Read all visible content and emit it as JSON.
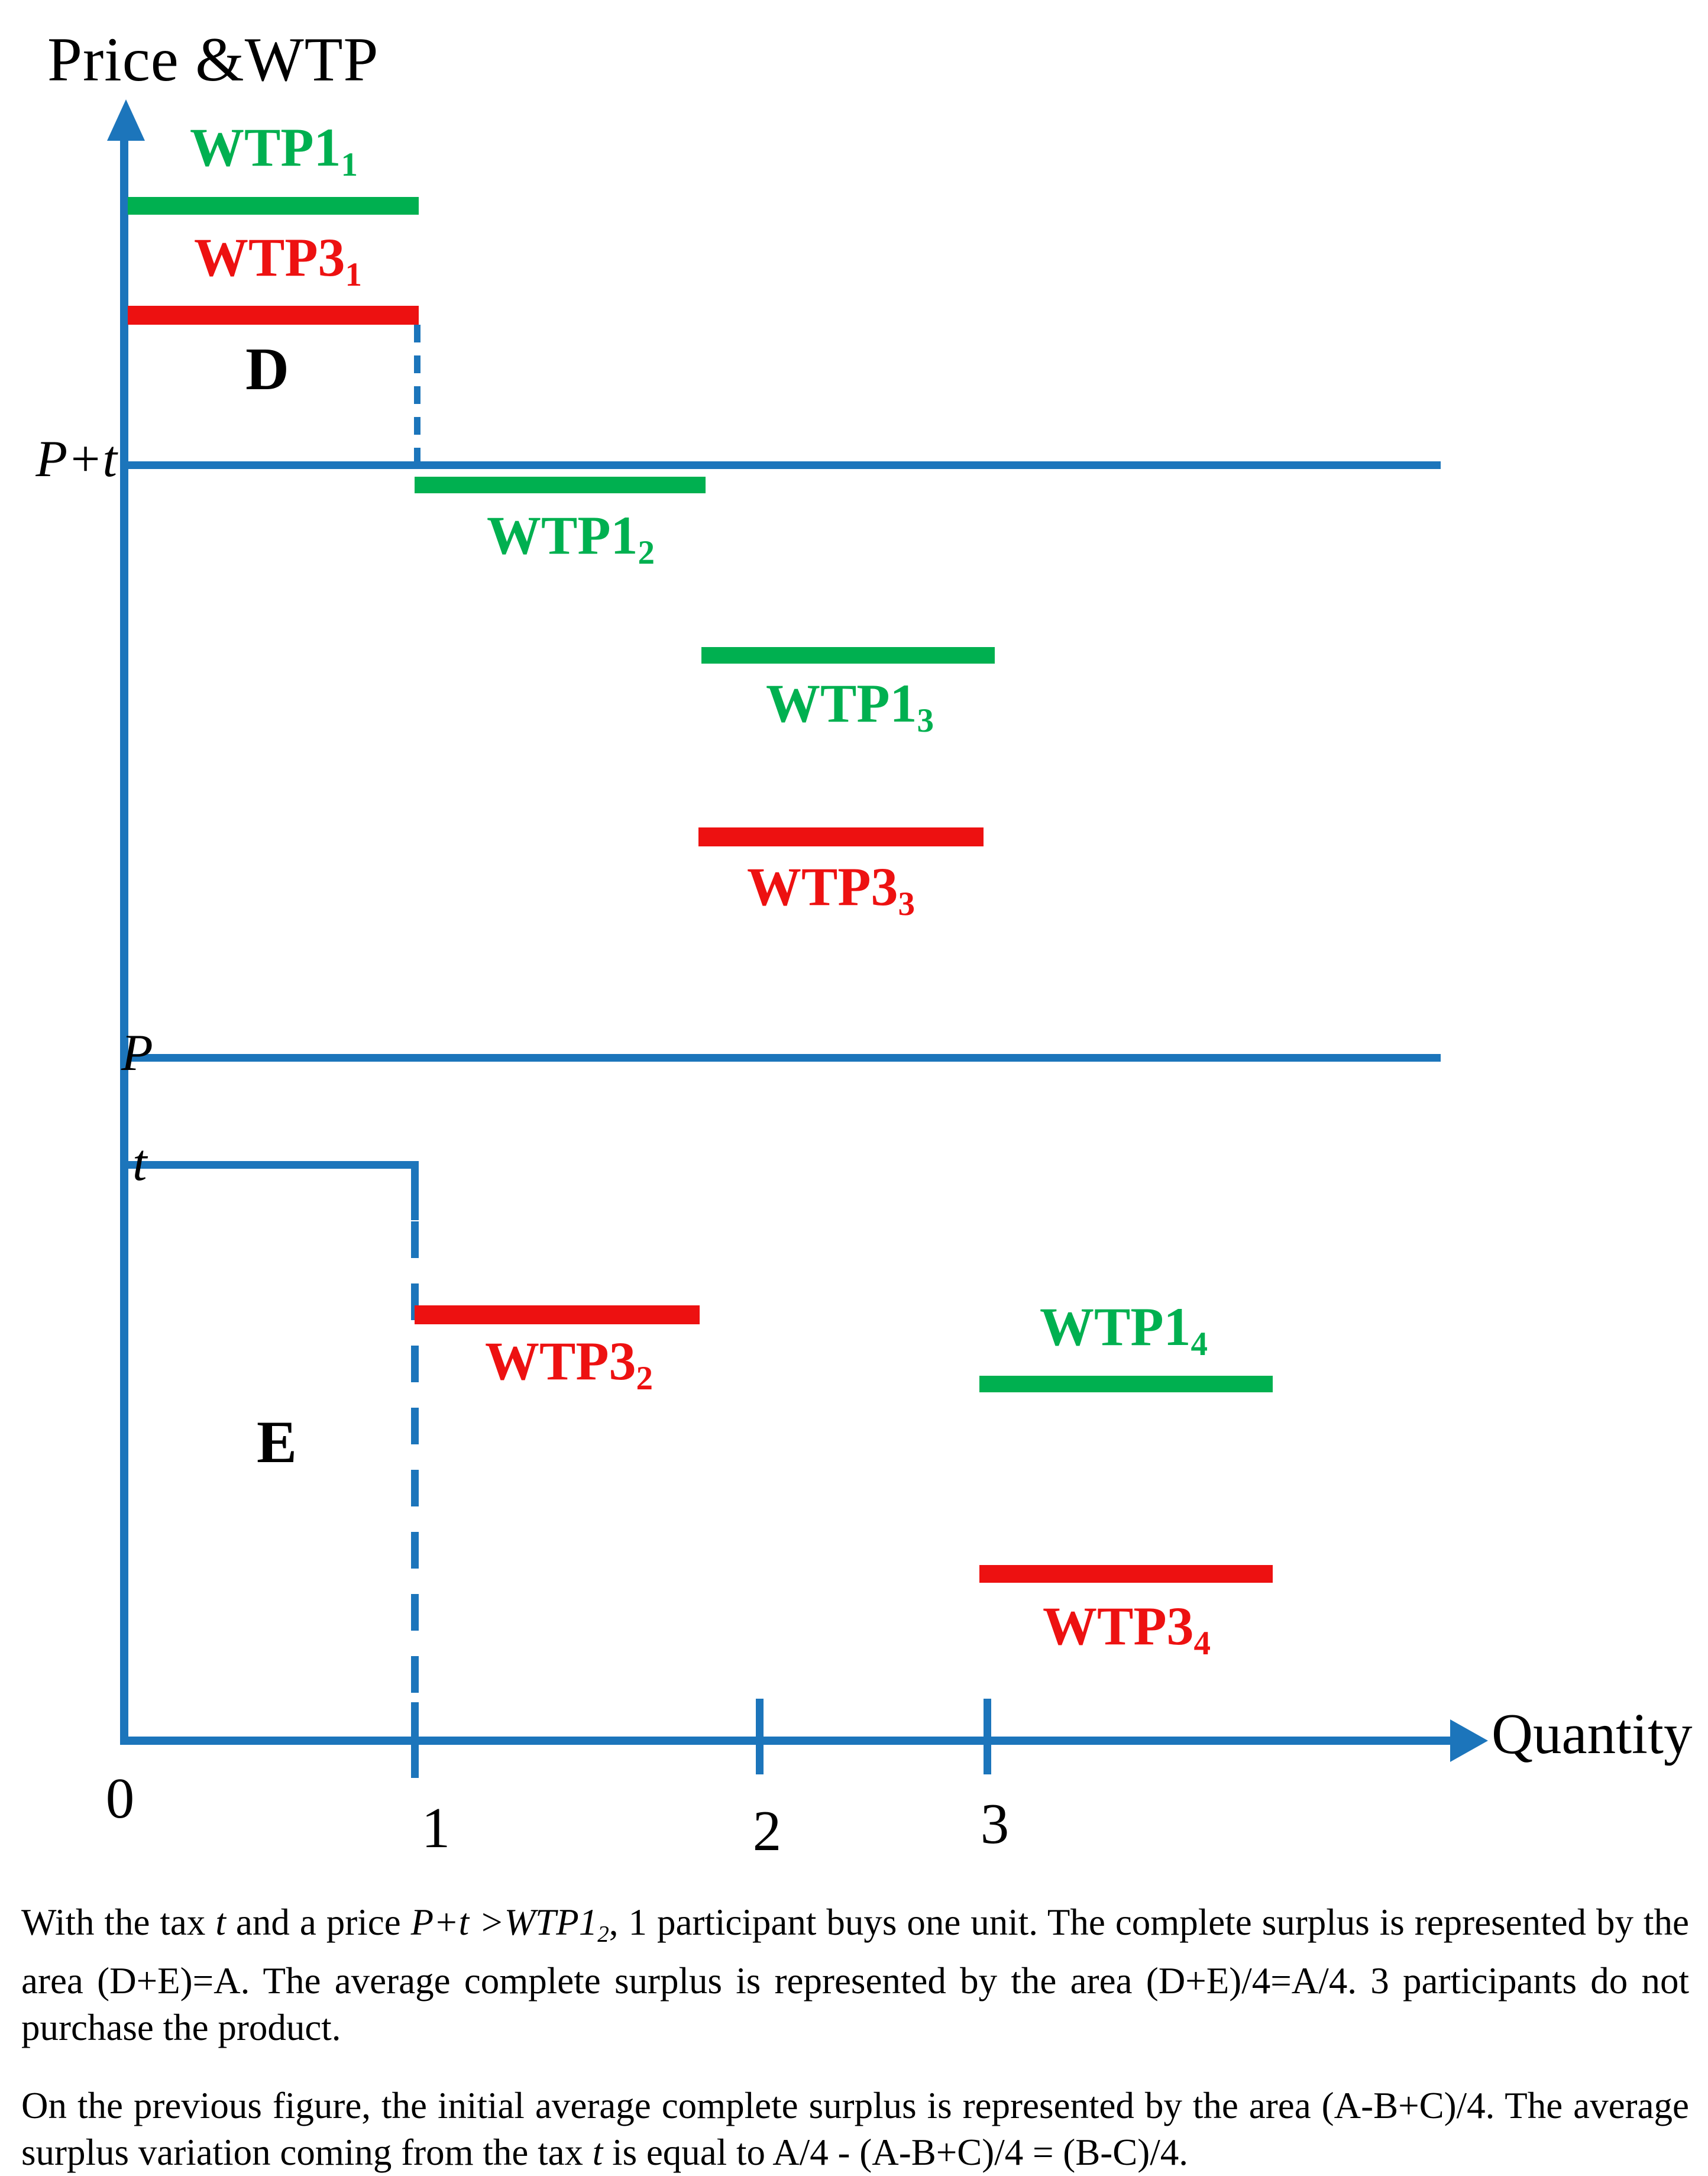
{
  "page": {
    "background": "#ffffff"
  },
  "figure": {
    "title": "Price &WTP",
    "x_axis_label": "Quantity",
    "x_ticks": [
      "0",
      "1",
      "2",
      "3"
    ],
    "price_lines": {
      "p_plus_t": "P+t",
      "p": "P",
      "t": "t"
    },
    "area_labels": {
      "d": "D",
      "e": "E"
    },
    "bars": [
      {
        "id": "wtp1-1",
        "series": "WTP1",
        "label": "WTP1",
        "sub": "1",
        "color": "#00b050"
      },
      {
        "id": "wtp3-1",
        "series": "WTP3",
        "label": "WTP3",
        "sub": "1",
        "color": "#ed1111"
      },
      {
        "id": "wtp1-2",
        "series": "WTP1",
        "label": "WTP1",
        "sub": "2",
        "color": "#00b050"
      },
      {
        "id": "wtp1-3",
        "series": "WTP1",
        "label": "WTP1",
        "sub": "3",
        "color": "#00b050"
      },
      {
        "id": "wtp3-3",
        "series": "WTP3",
        "label": "WTP3",
        "sub": "3",
        "color": "#ed1111"
      },
      {
        "id": "wtp3-2",
        "series": "WTP3",
        "label": "WTP3",
        "sub": "2",
        "color": "#ed1111"
      },
      {
        "id": "wtp1-4",
        "series": "WTP1",
        "label": "WTP1",
        "sub": "4",
        "color": "#00b050"
      },
      {
        "id": "wtp3-4",
        "series": "WTP3",
        "label": "WTP3",
        "sub": "4",
        "color": "#ed1111"
      }
    ],
    "colors": {
      "axis_blue": "#1c75bb",
      "wtp1_green": "#00b050",
      "wtp3_red": "#ed1111",
      "text": "#000000"
    }
  },
  "chart_data": {
    "type": "line",
    "title": "Price &WTP",
    "xlabel": "Quantity",
    "ylabel": "Price &WTP",
    "x_ticks": [
      0,
      1,
      2,
      3
    ],
    "y_units": "relative height (0 = x-axis, 1 = top of y-axis); no numeric y scale shown",
    "series": [
      {
        "name": "WTP1_1",
        "segment_x": [
          0,
          1
        ],
        "y": 0.94,
        "color": "#00b050"
      },
      {
        "name": "WTP3_1",
        "segment_x": [
          0,
          1
        ],
        "y": 0.87,
        "color": "#ed1111"
      },
      {
        "name": "WTP1_2",
        "segment_x": [
          1,
          2
        ],
        "y": 0.77,
        "color": "#00b050"
      },
      {
        "name": "WTP1_3",
        "segment_x": [
          2,
          3
        ],
        "y": 0.66,
        "color": "#00b050"
      },
      {
        "name": "WTP3_3",
        "segment_x": [
          2,
          3
        ],
        "y": 0.55,
        "color": "#ed1111"
      },
      {
        "name": "WTP3_2",
        "segment_x": [
          1,
          2
        ],
        "y": 0.26,
        "color": "#ed1111"
      },
      {
        "name": "WTP1_4",
        "segment_x": [
          3,
          4
        ],
        "y": 0.22,
        "color": "#00b050"
      },
      {
        "name": "WTP3_4",
        "segment_x": [
          3,
          4
        ],
        "y": 0.1,
        "color": "#ed1111"
      }
    ],
    "reference_lines": [
      {
        "name": "P+t",
        "y": 0.78,
        "x_range": [
          0,
          4.6
        ],
        "style": "solid",
        "color": "#1c75bb"
      },
      {
        "name": "P",
        "y": 0.42,
        "x_range": [
          0,
          4.6
        ],
        "style": "solid",
        "color": "#1c75bb"
      },
      {
        "name": "t",
        "y": 0.35,
        "x_range": [
          0,
          1
        ],
        "style": "solid, then vertical drop at x=1 becoming dashed to x-axis",
        "color": "#1c75bb"
      }
    ],
    "dashed_verticals": [
      {
        "x": 1,
        "from_y": 0.87,
        "to_y": 0.78
      },
      {
        "x": 1,
        "from_y": 0.32,
        "to_y": 0.0
      }
    ],
    "annotations": [
      {
        "label": "D",
        "x": 0.5,
        "y": 0.82
      },
      {
        "label": "E",
        "x": 0.5,
        "y": 0.17
      }
    ],
    "legend_position": "none",
    "grid": false
  },
  "caption": {
    "paragraphs": [
      {
        "segments": [
          {
            "t": "With the tax "
          },
          {
            "t": "t",
            "i": true
          },
          {
            "t": " and a price "
          },
          {
            "t": "P+t",
            "i": true
          },
          {
            "t": " >",
            "i": true
          },
          {
            "t": "WTP1",
            "i": true
          },
          {
            "t": "2",
            "i": true,
            "sub": true
          },
          {
            "t": ", 1 participant buys one unit. The complete surplus is represented by the area (D+E)=A. The average complete surplus is represented by the area (D+E)/4=A/4. 3 participants do not purchase the product."
          }
        ]
      },
      {
        "segments": [
          {
            "t": "On the previous figure, the initial average complete surplus is represented by the area (A-B+C)/4. The average surplus variation coming from the tax "
          },
          {
            "t": "t",
            "i": true
          },
          {
            "t": " is equal to A/4 - (A-B+C)/4 = (B-C)/4."
          }
        ]
      }
    ]
  }
}
